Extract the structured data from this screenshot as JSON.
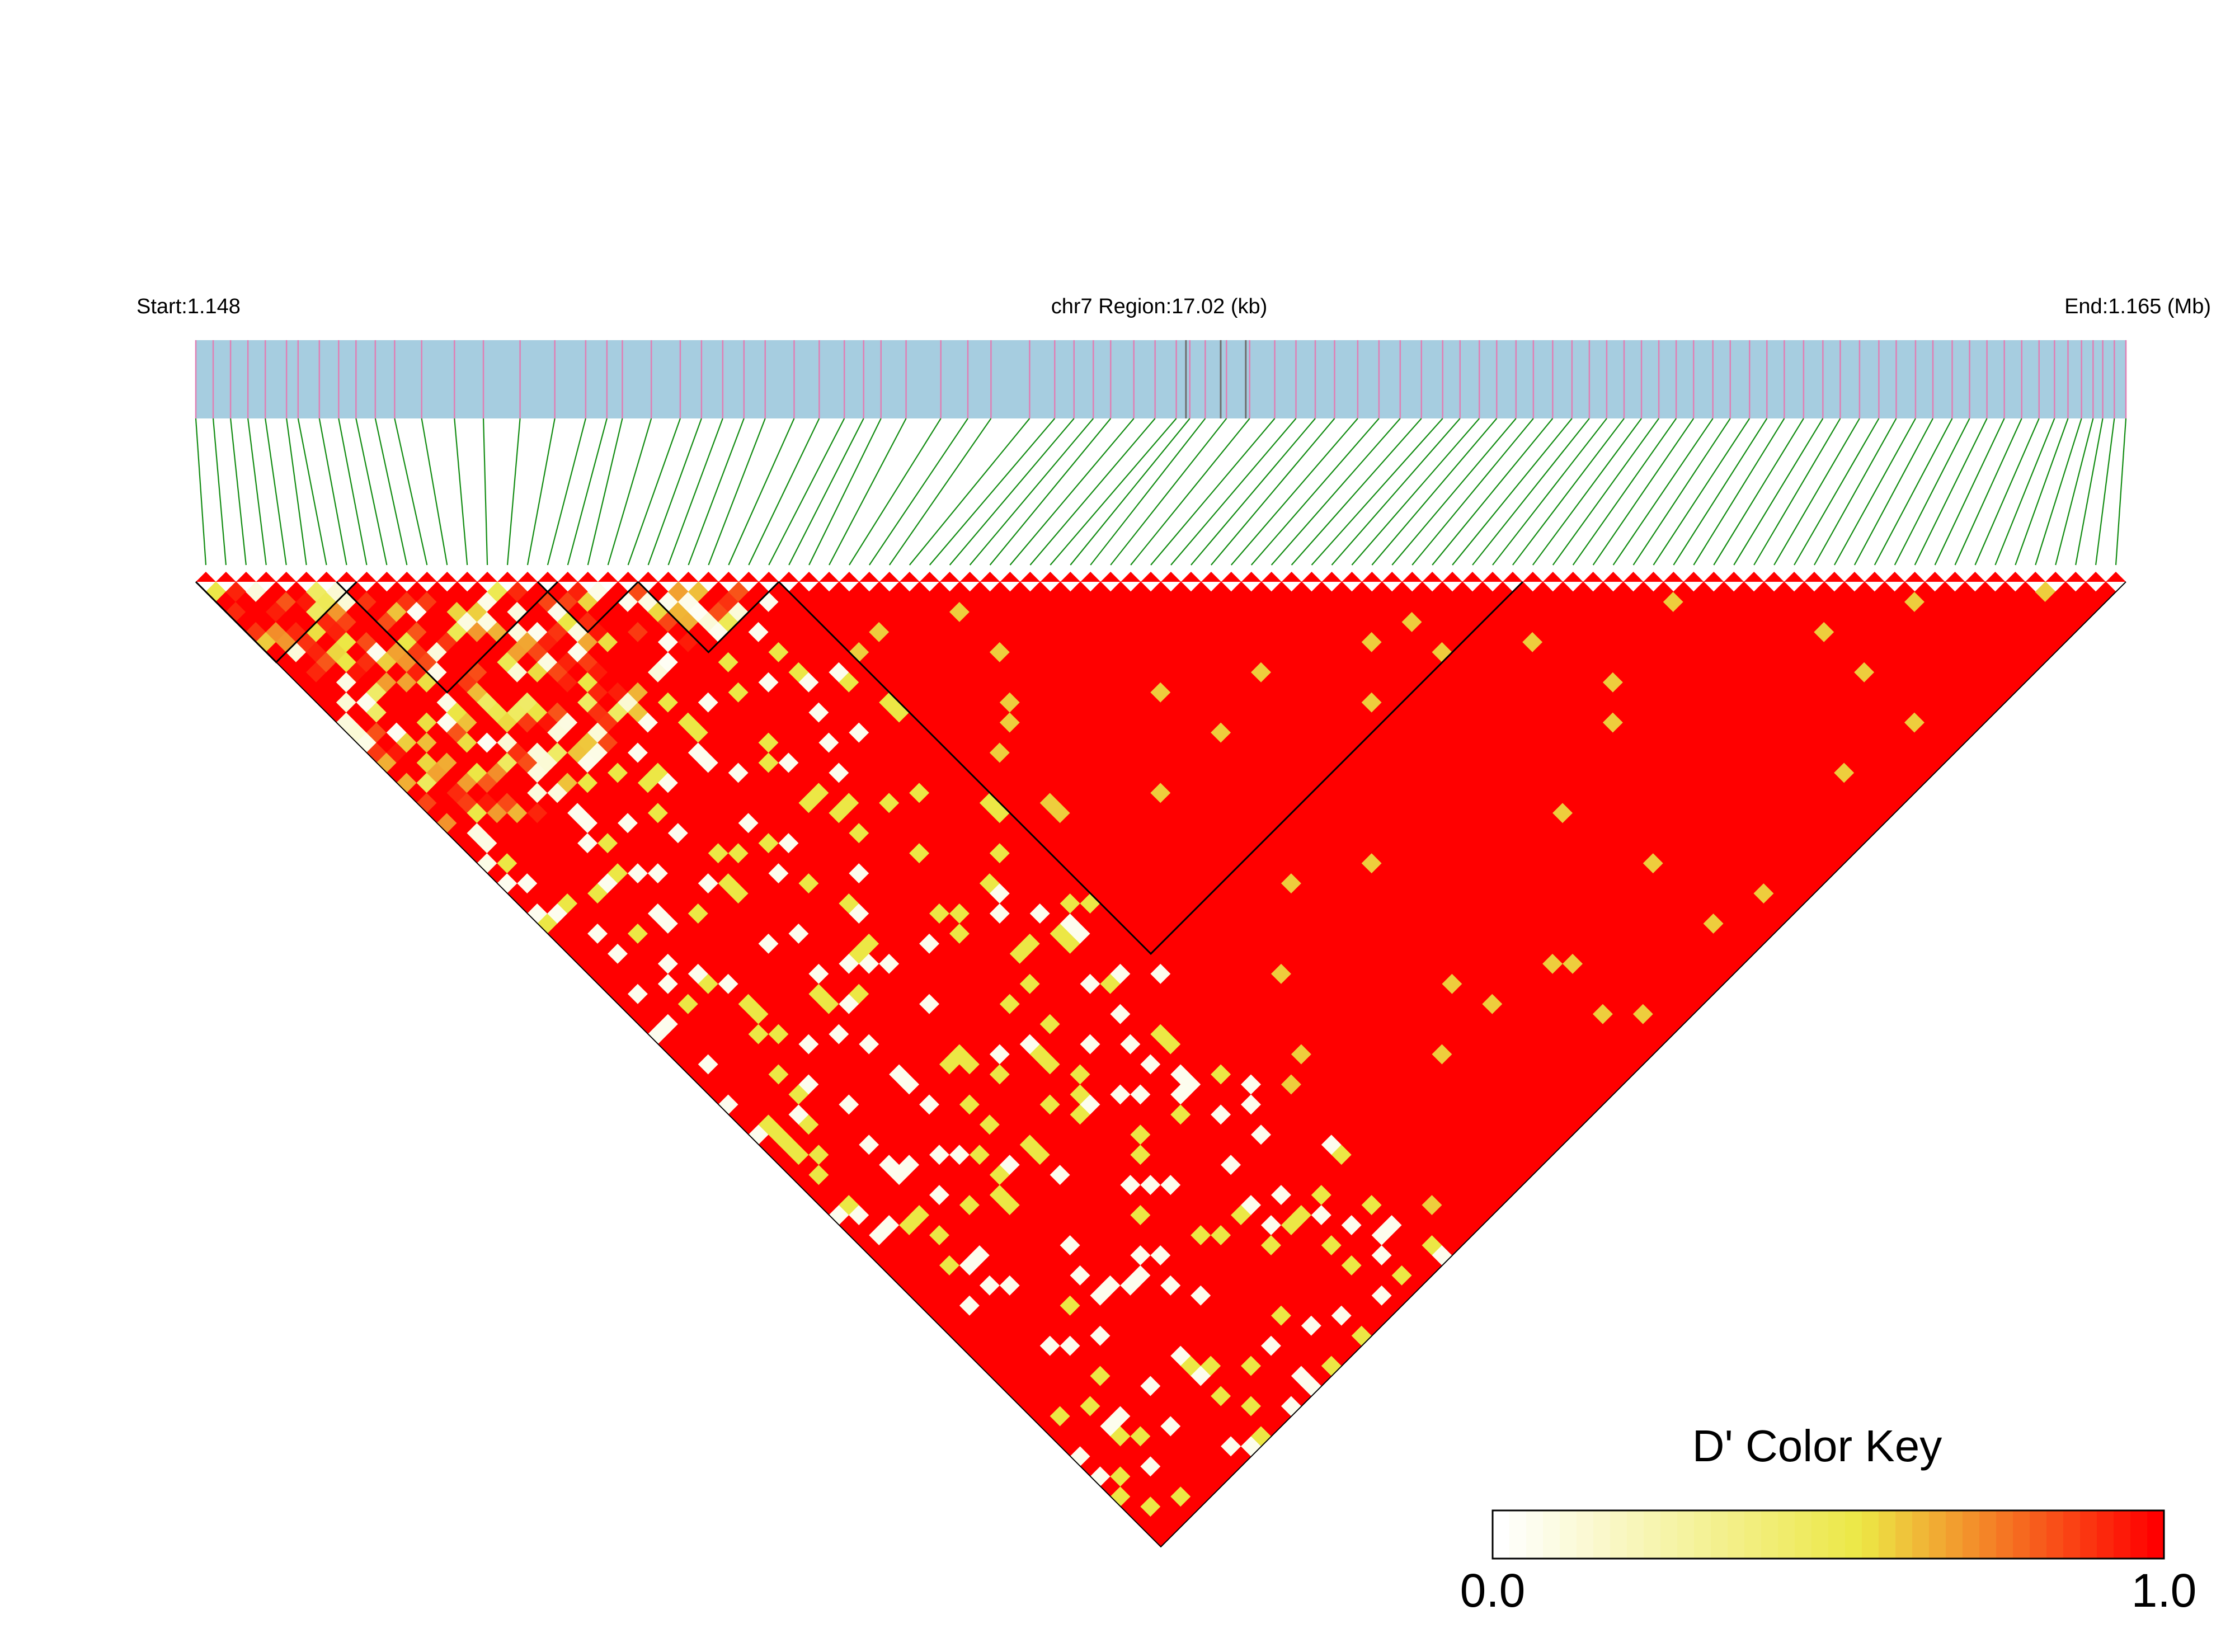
{
  "header": {
    "start_label": "Start:1.148",
    "region_label": "chr7 Region:17.02 (kb)",
    "end_label": "End:1.165 (Mb)"
  },
  "colors": {
    "gene_track": "#a6cde0",
    "snp_tick": "#e07fb4",
    "gray_tick": "#6e6e6e",
    "connector": "#128c12",
    "ld_low": "#ffffff",
    "ld_mid": "#ece745",
    "ld_high": "#ff0000",
    "block_outline": "#000000"
  },
  "chart_data": {
    "type": "heatmap",
    "measure": "D'",
    "chromosome": "chr7",
    "region_start_mb": 1.148,
    "region_end_mb": 1.165,
    "region_length_kb": 17.02,
    "snp_count": 96,
    "value_range": [
      0.0,
      1.0
    ],
    "snp_positions_frac": [
      0,
      0.009,
      0.018,
      0.027,
      0.036,
      0.047,
      0.053,
      0.064,
      0.074,
      0.083,
      0.093,
      0.103,
      0.117,
      0.134,
      0.149,
      0.168,
      0.186,
      0.202,
      0.213,
      0.221,
      0.236,
      0.251,
      0.262,
      0.273,
      0.284,
      0.295,
      0.31,
      0.323,
      0.336,
      0.346,
      0.355,
      0.368,
      0.386,
      0.4,
      0.412,
      0.432,
      0.445,
      0.455,
      0.465,
      0.474,
      0.486,
      0.497,
      0.508,
      0.515,
      0.523,
      0.534,
      0.546,
      0.559,
      0.57,
      0.58,
      0.59,
      0.602,
      0.613,
      0.624,
      0.635,
      0.646,
      0.655,
      0.665,
      0.674,
      0.684,
      0.693,
      0.703,
      0.713,
      0.722,
      0.731,
      0.74,
      0.749,
      0.758,
      0.767,
      0.776,
      0.786,
      0.795,
      0.805,
      0.814,
      0.823,
      0.833,
      0.843,
      0.852,
      0.862,
      0.872,
      0.881,
      0.891,
      0.9,
      0.91,
      0.919,
      0.928,
      0.937,
      0.946,
      0.955,
      0.963,
      0.97,
      0.977,
      0.983,
      0.988,
      0.994,
      1.0
    ],
    "gray_positions_frac": [
      0.513,
      0.531,
      0.544
    ],
    "haplotype_blocks": [
      [
        0,
        7
      ],
      [
        7,
        17
      ],
      [
        17,
        21
      ],
      [
        22,
        28
      ],
      [
        29,
        65
      ]
    ],
    "color_key": {
      "title": "D' Color Key",
      "min_label": "0.0",
      "max_label": "1.0"
    }
  }
}
